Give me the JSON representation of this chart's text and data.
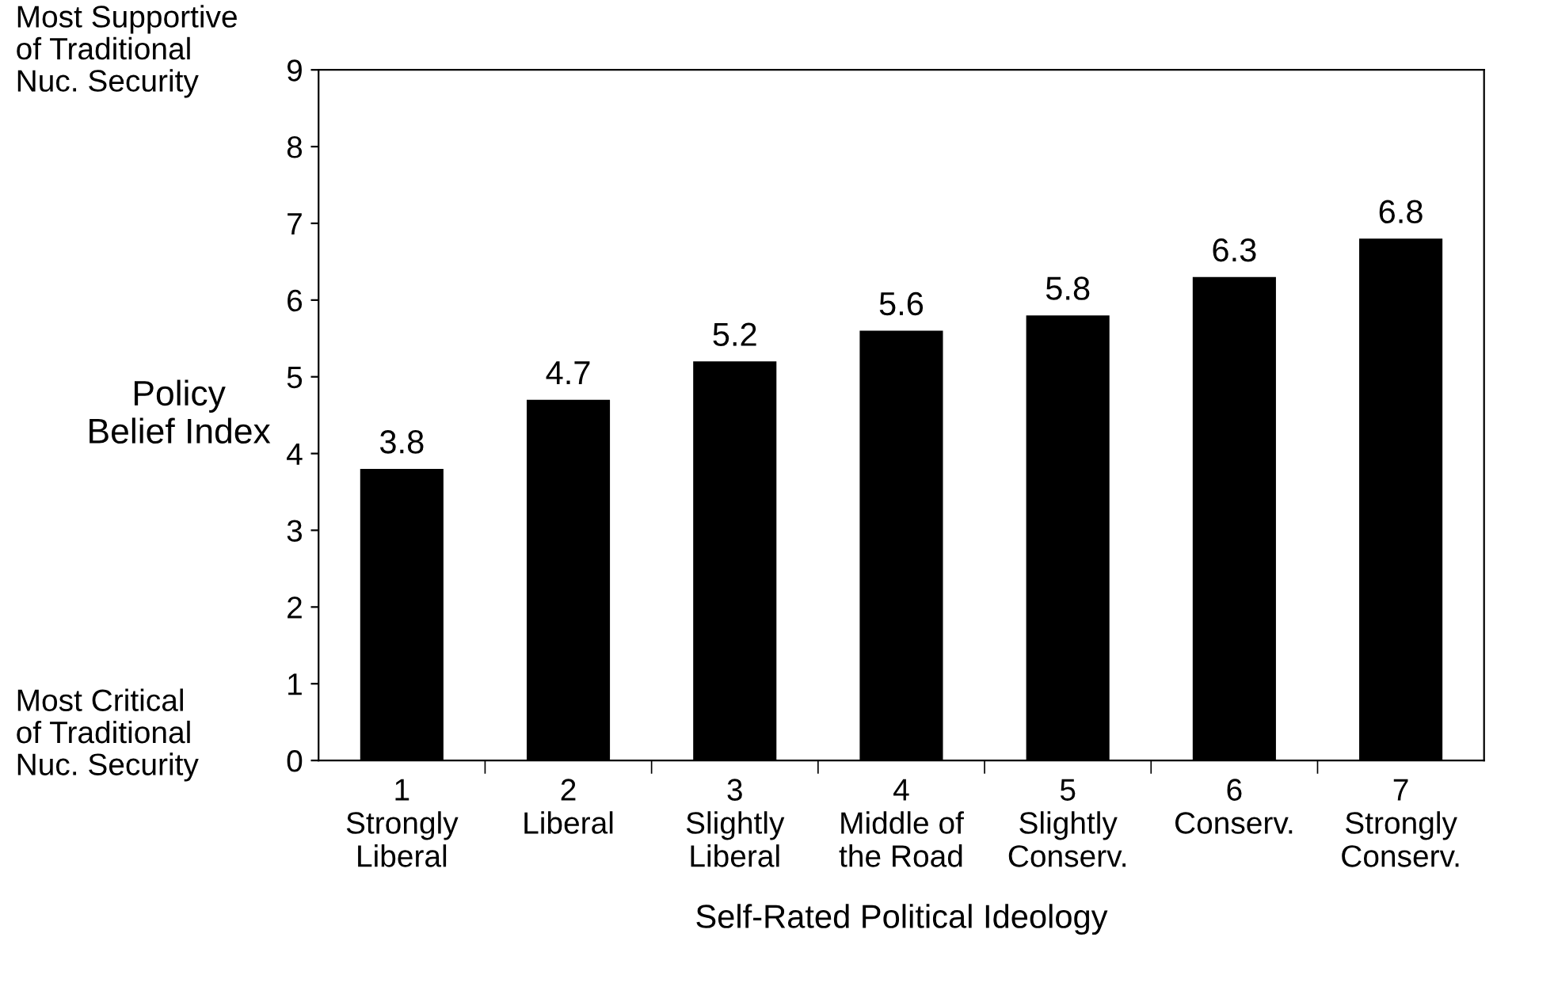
{
  "chart_data": {
    "type": "bar",
    "xlabel": "Self-Rated Political Ideology",
    "ylabel": "Policy\nBelief Index",
    "categories": [
      "1\nStrongly\nLiberal",
      "2\nLiberal",
      "3\nSlightly\nLiberal",
      "4\nMiddle of\nthe Road",
      "5\nSlightly\nConserv.",
      "6\nConserv.",
      "7\nStrongly\nConserv."
    ],
    "values": [
      3.8,
      4.7,
      5.2,
      5.6,
      5.8,
      6.3,
      6.8
    ],
    "color": "#000000",
    "data_labels": true,
    "ylim": [
      0,
      9
    ],
    "yticks": [
      0,
      1,
      2,
      3,
      4,
      5,
      6,
      7,
      8,
      9
    ],
    "grid": false,
    "legend": false,
    "annotations": [
      "Most Supportive\nof Traditional\nNuc. Security",
      "Most Critical\nof Traditional\nNuc. Security"
    ]
  }
}
